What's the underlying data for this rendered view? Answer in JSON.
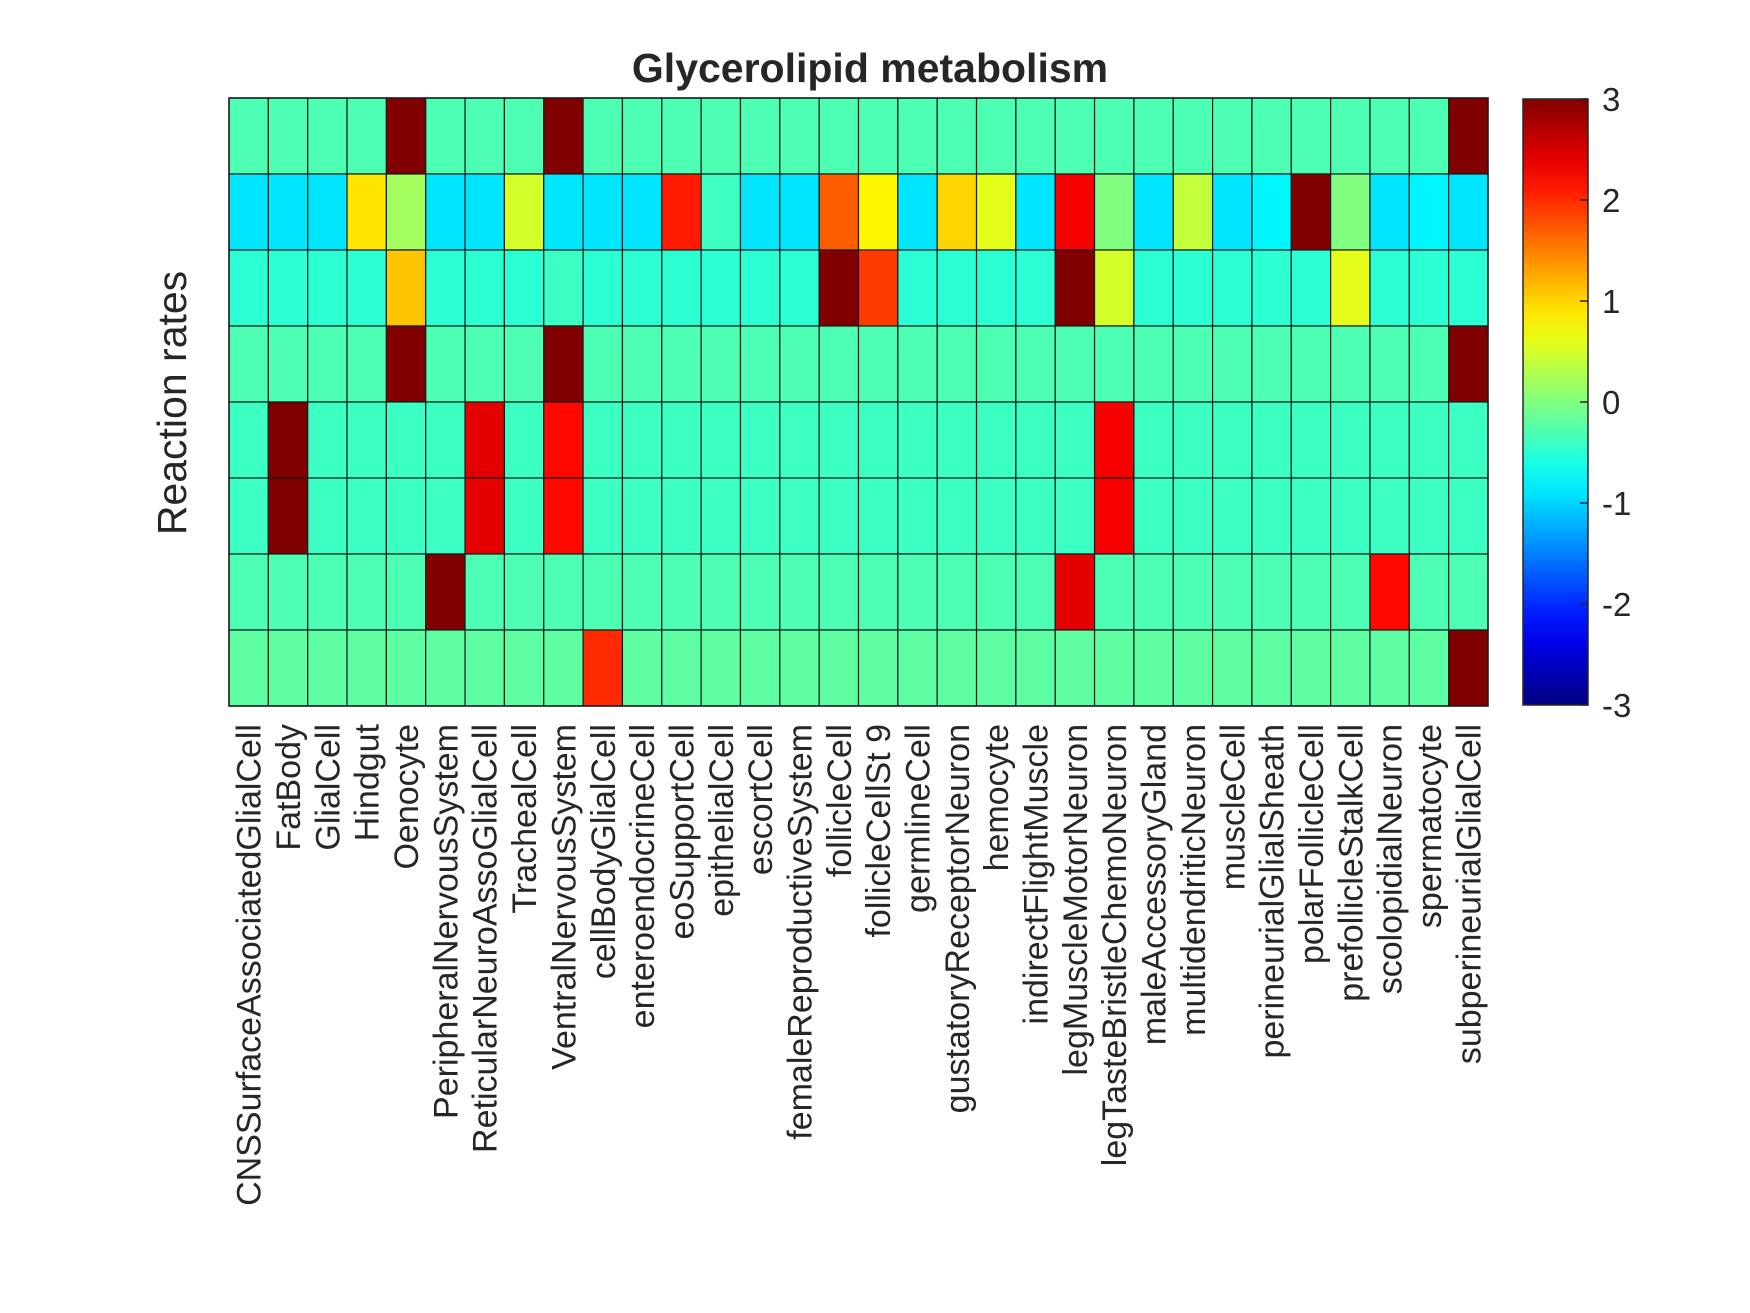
{
  "chart_data": {
    "type": "heatmap",
    "title": "Glycerolipid metabolism",
    "ylabel": "Reaction rates",
    "xlabel": "",
    "categories": [
      "CNSSurfaceAssociatedGlialCell",
      "FatBody",
      "GlialCell",
      "Hindgut",
      "Oenocyte",
      "PeripheralNervousSystem",
      "ReticularNeuroAssoGlialCell",
      "TrachealCell",
      "VentralNervousSystem",
      "cellBodyGlialCell",
      "enteroendocrineCell",
      "eoSupportCell",
      "epithelialCell",
      "escortCell",
      "femaleReproductiveSystem",
      "follicleCell",
      "follicleCellSt 9",
      "germlineCell",
      "gustatoryReceptorNeuron",
      "hemocyte",
      "indirectFlightMuscle",
      "legMuscleMotorNeuron",
      "legTasteBristleChemoNeuron",
      "maleAccessoryGland",
      "multidendriticNeuron",
      "muscleCell",
      "perineurialGlialSheath",
      "polarFollicleCell",
      "prefollicleStalkCell",
      "scolopidialNeuron",
      "spermatocyte",
      "subperineurialGlialCell"
    ],
    "rows": 8,
    "values": [
      [
        -0.3,
        -0.3,
        -0.3,
        -0.3,
        3,
        -0.3,
        -0.3,
        -0.3,
        3,
        -0.3,
        -0.3,
        -0.3,
        -0.3,
        -0.3,
        -0.3,
        -0.3,
        -0.3,
        -0.3,
        -0.3,
        -0.3,
        -0.3,
        -0.3,
        -0.3,
        -0.3,
        -0.3,
        -0.3,
        -0.3,
        -0.3,
        -0.3,
        -0.3,
        -0.3,
        3
      ],
      [
        -0.9,
        -0.9,
        -0.9,
        0.9,
        0.2,
        -0.9,
        -0.9,
        0.5,
        -0.9,
        -0.9,
        -0.9,
        2.1,
        -0.4,
        -0.9,
        -0.9,
        1.7,
        0.8,
        -0.9,
        1.0,
        0.6,
        -0.9,
        2.3,
        0.0,
        -0.9,
        0.4,
        -0.9,
        -0.8,
        3,
        0.0,
        -0.9,
        -0.8,
        -0.9
      ],
      [
        -0.5,
        -0.5,
        -0.5,
        -0.5,
        1.1,
        -0.5,
        -0.5,
        -0.5,
        -0.4,
        -0.5,
        -0.5,
        -0.5,
        -0.5,
        -0.5,
        -0.5,
        3,
        1.9,
        -0.5,
        -0.5,
        -0.5,
        -0.5,
        3,
        0.5,
        -0.5,
        -0.5,
        -0.5,
        -0.5,
        -0.5,
        0.6,
        -0.5,
        -0.5,
        -0.5
      ],
      [
        -0.3,
        -0.3,
        -0.3,
        -0.3,
        3,
        -0.3,
        -0.3,
        -0.3,
        3,
        -0.3,
        -0.3,
        -0.3,
        -0.3,
        -0.3,
        -0.3,
        -0.3,
        -0.3,
        -0.3,
        -0.3,
        -0.3,
        -0.3,
        -0.3,
        -0.3,
        -0.3,
        -0.3,
        -0.3,
        -0.3,
        -0.3,
        -0.3,
        -0.3,
        -0.3,
        3
      ],
      [
        -0.4,
        3,
        -0.4,
        -0.4,
        -0.4,
        -0.4,
        2.4,
        -0.4,
        2.2,
        -0.4,
        -0.4,
        -0.4,
        -0.4,
        -0.4,
        -0.4,
        -0.4,
        -0.4,
        -0.4,
        -0.4,
        -0.4,
        -0.4,
        -0.4,
        2.3,
        -0.4,
        -0.4,
        -0.4,
        -0.4,
        -0.4,
        -0.4,
        -0.4,
        -0.4,
        -0.4
      ],
      [
        -0.4,
        3,
        -0.4,
        -0.4,
        -0.4,
        -0.4,
        2.4,
        -0.4,
        2.2,
        -0.4,
        -0.4,
        -0.4,
        -0.4,
        -0.4,
        -0.4,
        -0.4,
        -0.4,
        -0.4,
        -0.4,
        -0.4,
        -0.4,
        -0.4,
        2.3,
        -0.4,
        -0.4,
        -0.4,
        -0.4,
        -0.4,
        -0.4,
        -0.4,
        -0.4,
        -0.4
      ],
      [
        -0.3,
        -0.3,
        -0.3,
        -0.3,
        -0.3,
        3,
        -0.3,
        -0.3,
        -0.3,
        -0.3,
        -0.3,
        -0.3,
        -0.3,
        -0.3,
        -0.3,
        -0.3,
        -0.3,
        -0.3,
        -0.3,
        -0.3,
        -0.3,
        2.4,
        -0.3,
        -0.3,
        -0.3,
        -0.3,
        -0.3,
        -0.3,
        -0.3,
        2.2,
        -0.3,
        -0.3
      ],
      [
        -0.2,
        -0.2,
        -0.2,
        -0.2,
        -0.2,
        -0.2,
        -0.2,
        -0.2,
        -0.2,
        2.0,
        -0.2,
        -0.2,
        -0.2,
        -0.2,
        -0.2,
        -0.2,
        -0.2,
        -0.2,
        -0.2,
        -0.2,
        -0.2,
        -0.2,
        -0.2,
        -0.2,
        -0.2,
        -0.2,
        -0.2,
        -0.2,
        -0.2,
        -0.2,
        -0.2,
        3
      ]
    ],
    "colorbar": {
      "colormap": "jet",
      "range": [
        -3,
        3
      ],
      "ticks": [
        "3",
        "2",
        "1",
        "0",
        "-1",
        "-2",
        "-3"
      ]
    },
    "grid": true
  }
}
